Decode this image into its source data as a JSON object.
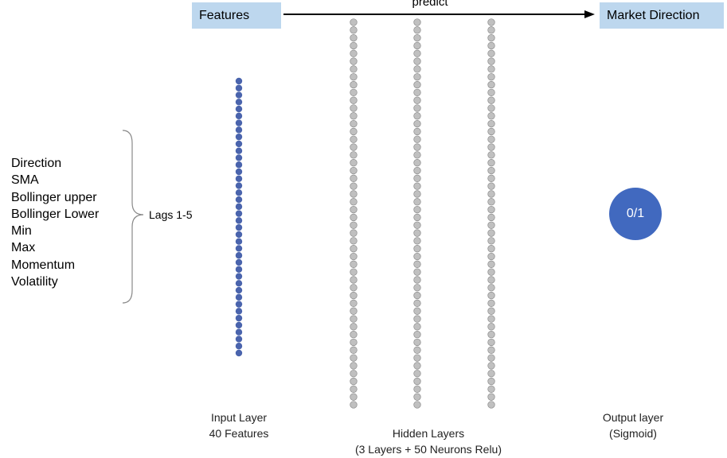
{
  "header": {
    "features_label": "Features",
    "predict_label": "predict",
    "output_label": "Market Direction"
  },
  "features": {
    "items": [
      "Direction",
      "SMA",
      "Bollinger upper",
      "Bollinger Lower",
      "Min",
      "Max",
      "Momentum",
      "Volatility"
    ],
    "lags_label": "Lags 1-5"
  },
  "layers": {
    "input": {
      "caption_line1": "Input Layer",
      "caption_line2": "40 Features",
      "node_count": 40
    },
    "hidden": {
      "caption_line1": "Hidden Layers",
      "caption_line2": "(3 Layers + 50 Neurons Relu)",
      "node_count": 50,
      "layer_count": 3
    },
    "output": {
      "caption_line1": "Output layer",
      "caption_line2": "(Sigmoid)",
      "node_label": "0/1"
    }
  },
  "colors": {
    "input_node": "#4a64ad",
    "hidden_node": "#c0c0c0",
    "hidden_node_stroke": "#8c8c8c",
    "output_node": "#4169bf",
    "header_box": "#bdd7ee"
  }
}
